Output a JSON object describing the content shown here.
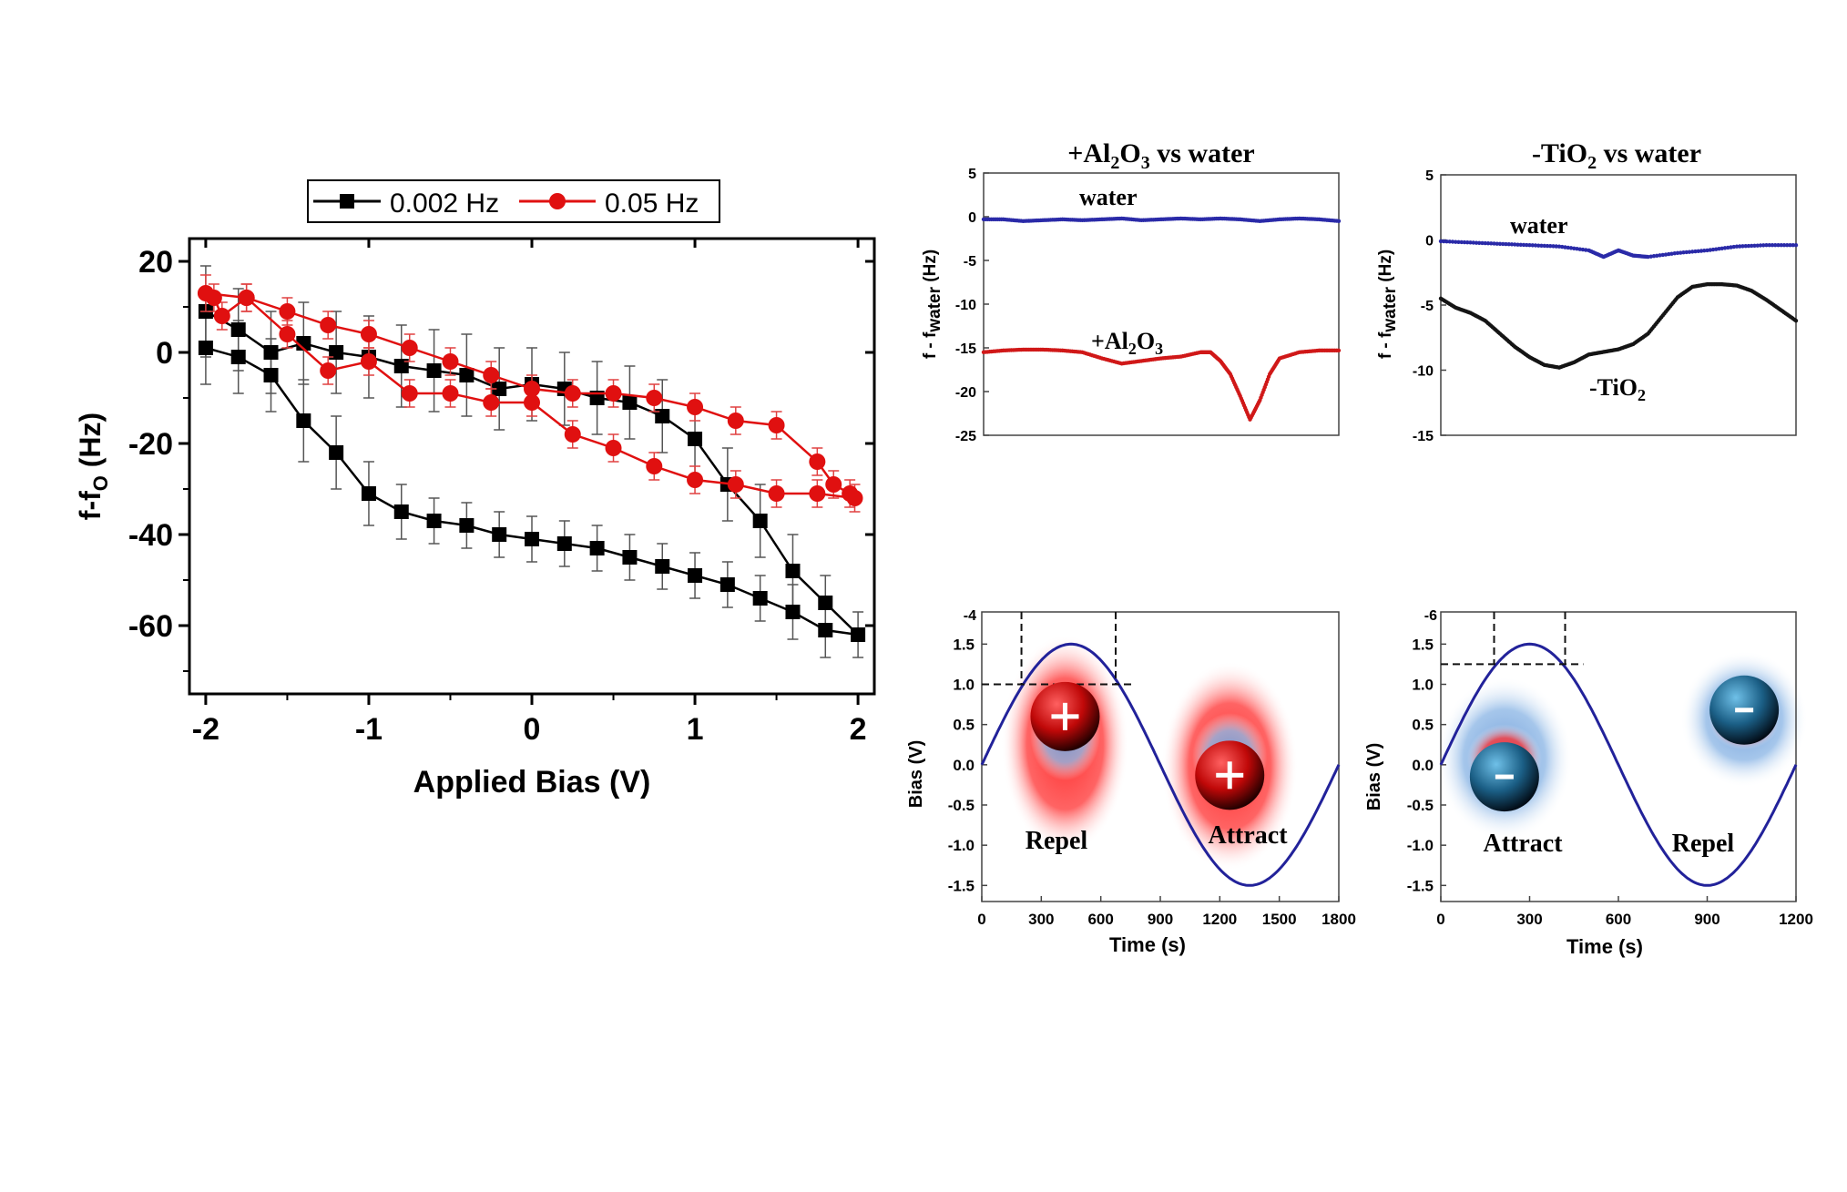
{
  "chart_data": [
    {
      "id": "hysteresis",
      "type": "line",
      "xlabel": "Applied Bias (V)",
      "ylabel": "f-f",
      "ylabel_sub": "O",
      "ylabel_unit": " (Hz)",
      "xlim": [
        -2.1,
        2.1
      ],
      "ylim": [
        -75,
        25
      ],
      "xticks": [
        "-2",
        "-1",
        "0",
        "1",
        "2"
      ],
      "xtick_values": [
        -2,
        -1,
        0,
        1,
        2
      ],
      "yticks": [
        "20",
        "0",
        "-20",
        "-40",
        "-60"
      ],
      "ytick_values": [
        20,
        0,
        -20,
        -40,
        -60
      ],
      "legend": "top-center",
      "series": [
        {
          "name": "0.002 Hz",
          "color": "#000000",
          "marker": "square",
          "x": [
            -2.0,
            -1.8,
            -1.6,
            -1.4,
            -1.2,
            -1.0,
            -0.8,
            -0.6,
            -0.4,
            -0.2,
            0.0,
            0.2,
            0.4,
            0.6,
            0.8,
            1.0,
            1.2,
            1.4,
            1.6,
            1.8,
            2.0,
            1.8,
            1.6,
            1.4,
            1.2,
            1.0,
            0.8,
            0.6,
            0.4,
            0.2,
            0.0,
            -0.2,
            -0.4,
            -0.6,
            -0.8,
            -1.0,
            -1.2,
            -1.4,
            -1.6,
            -1.8,
            -2.0
          ],
          "y": [
            1,
            -1,
            -5,
            -15,
            -22,
            -31,
            -35,
            -37,
            -38,
            -40,
            -41,
            -42,
            -43,
            -45,
            -47,
            -49,
            -51,
            -54,
            -57,
            -61,
            -62,
            -55,
            -48,
            -37,
            -29,
            -19,
            -14,
            -11,
            -10,
            -8,
            -7,
            -8,
            -5,
            -4,
            -3,
            -1,
            0,
            2,
            0,
            5,
            9
          ],
          "err": [
            8,
            8,
            8,
            9,
            8,
            7,
            6,
            5,
            5,
            5,
            5,
            5,
            5,
            5,
            5,
            5,
            5,
            5,
            6,
            6,
            5,
            6,
            8,
            8,
            8,
            8,
            8,
            8,
            8,
            8,
            8,
            9,
            9,
            9,
            9,
            9,
            9,
            9,
            9,
            9,
            10
          ]
        },
        {
          "name": "0.05 Hz",
          "color": "#e01010",
          "marker": "circle",
          "x": [
            -2.0,
            -1.75,
            -1.5,
            -1.25,
            -1.0,
            -0.75,
            -0.5,
            -0.25,
            0.0,
            0.25,
            0.5,
            0.75,
            1.0,
            1.25,
            1.5,
            1.75,
            1.85,
            1.95,
            1.98,
            1.75,
            1.5,
            1.25,
            1.0,
            0.75,
            0.5,
            0.25,
            0.0,
            -0.25,
            -0.5,
            -0.75,
            -1.0,
            -1.25,
            -1.5,
            -1.75,
            -1.9,
            -1.95
          ],
          "y": [
            13,
            12,
            9,
            6,
            4,
            1,
            -2,
            -5,
            -8,
            -9,
            -9,
            -10,
            -12,
            -15,
            -16,
            -24,
            -29,
            -31,
            -32,
            -31,
            -31,
            -29,
            -28,
            -25,
            -21,
            -18,
            -11,
            -11,
            -9,
            -9,
            -2,
            -4,
            4,
            12,
            8,
            12
          ],
          "err": [
            4,
            3,
            3,
            3,
            3,
            3,
            3,
            3,
            3,
            3,
            3,
            3,
            3,
            3,
            3,
            3,
            3,
            3,
            3,
            3,
            3,
            3,
            3,
            3,
            3,
            3,
            3,
            3,
            3,
            3,
            3,
            3,
            3,
            3,
            3,
            3
          ]
        }
      ]
    },
    {
      "id": "al2o3-vs-water",
      "type": "scatter",
      "title_parts": [
        "+Al",
        "2",
        "O",
        "3",
        " vs water"
      ],
      "ylabel": "f - f",
      "ylabel_sub": "water",
      "ylabel_unit": " (Hz)",
      "ylim": [
        -25,
        5
      ],
      "yticks": [
        "5",
        "0",
        "-5",
        "-10",
        "-15",
        "-20",
        "-25"
      ],
      "ytick_values": [
        5,
        0,
        -5,
        -10,
        -15,
        -20,
        -25
      ],
      "xlim": [
        0,
        1800
      ],
      "annotations": [
        {
          "text": "water"
        },
        {
          "text_parts": [
            "+Al",
            "2",
            "O",
            "3"
          ]
        }
      ],
      "series": [
        {
          "name": "water",
          "color": "#2a2aa8",
          "x": [
            0,
            100,
            200,
            300,
            400,
            500,
            600,
            700,
            800,
            900,
            1000,
            1100,
            1200,
            1300,
            1400,
            1500,
            1600,
            1700,
            1800
          ],
          "y": [
            -0.3,
            -0.3,
            -0.5,
            -0.4,
            -0.3,
            -0.4,
            -0.3,
            -0.2,
            -0.4,
            -0.3,
            -0.2,
            -0.3,
            -0.2,
            -0.3,
            -0.5,
            -0.3,
            -0.2,
            -0.3,
            -0.5
          ]
        },
        {
          "name": "+Al2O3",
          "color": "#d01818",
          "x": [
            0,
            100,
            200,
            300,
            400,
            500,
            600,
            700,
            800,
            900,
            1000,
            1100,
            1150,
            1200,
            1250,
            1300,
            1350,
            1400,
            1450,
            1500,
            1600,
            1700,
            1800
          ],
          "y": [
            -15.5,
            -15.3,
            -15.2,
            -15.2,
            -15.3,
            -15.5,
            -16.2,
            -16.8,
            -16.5,
            -16.2,
            -16,
            -15.5,
            -15.5,
            -16.5,
            -18,
            -20.5,
            -23.2,
            -21,
            -18,
            -16.2,
            -15.5,
            -15.3,
            -15.3
          ]
        }
      ]
    },
    {
      "id": "tio2-vs-water",
      "type": "scatter",
      "title_parts": [
        "-TiO",
        "2",
        " vs water"
      ],
      "ylabel": "f - f",
      "ylabel_sub": "water",
      "ylabel_unit": " (Hz)",
      "ylim": [
        -15,
        5
      ],
      "yticks": [
        "5",
        "0",
        "-5",
        "-10",
        "-15"
      ],
      "ytick_values": [
        5,
        0,
        -5,
        -10,
        -15
      ],
      "xlim": [
        0,
        1200
      ],
      "annotations": [
        {
          "text": "water"
        },
        {
          "text_parts": [
            "-TiO",
            "2"
          ]
        }
      ],
      "series": [
        {
          "name": "water",
          "color": "#2a2aa8",
          "x": [
            0,
            100,
            200,
            300,
            400,
            500,
            550,
            600,
            650,
            700,
            800,
            900,
            1000,
            1100,
            1200
          ],
          "y": [
            -0.1,
            -0.2,
            -0.3,
            -0.4,
            -0.5,
            -0.8,
            -1.3,
            -0.8,
            -1.2,
            -1.3,
            -1.0,
            -0.8,
            -0.5,
            -0.4,
            -0.4
          ]
        },
        {
          "name": "-TiO2",
          "color": "#151515",
          "x": [
            0,
            50,
            100,
            150,
            200,
            250,
            300,
            350,
            400,
            450,
            500,
            550,
            600,
            650,
            700,
            750,
            800,
            850,
            900,
            950,
            1000,
            1050,
            1100,
            1150,
            1200
          ],
          "y": [
            -4.5,
            -5.2,
            -5.6,
            -6.2,
            -7.2,
            -8.2,
            -9.0,
            -9.6,
            -9.8,
            -9.4,
            -8.8,
            -8.6,
            -8.4,
            -8.0,
            -7.2,
            -5.8,
            -4.4,
            -3.6,
            -3.4,
            -3.4,
            -3.5,
            -3.9,
            -4.6,
            -5.4,
            -6.2
          ]
        }
      ]
    },
    {
      "id": "al2o3-bias",
      "type": "line",
      "xlabel": "Time (s)",
      "ylabel": "Bias (V)",
      "xlim": [
        0,
        1800
      ],
      "ylim": [
        -1.7,
        1.9
      ],
      "xticks": [
        "0",
        "300",
        "600",
        "900",
        "1200",
        "1500",
        "1800"
      ],
      "xtick_values": [
        0,
        300,
        600,
        900,
        1200,
        1500,
        1800
      ],
      "yticks": [
        "1.5",
        "1.0",
        "0.5",
        "0.0",
        "-0.5",
        "-1.0",
        "-1.5"
      ],
      "ytick_values": [
        1.5,
        1.0,
        0.5,
        0.0,
        -0.5,
        -1.0,
        -1.5
      ],
      "top_label": "-4",
      "wave": {
        "amplitude": 1.5,
        "period": 1800,
        "color": "#22229a"
      },
      "threshold": {
        "y": 1.0,
        "x": [
          200,
          675
        ]
      },
      "labels": [
        "Repel",
        "Attract"
      ],
      "ion_symbol": "+",
      "ion_color": "#c81010",
      "cloud_outer": "#ff2020",
      "cloud_inner": "#7fa8dc"
    },
    {
      "id": "tio2-bias",
      "type": "line",
      "xlabel": "Time (s)",
      "ylabel": "Bias (V)",
      "xlim": [
        0,
        1200
      ],
      "ylim": [
        -1.7,
        1.9
      ],
      "xticks": [
        "0",
        "300",
        "600",
        "900",
        "1200"
      ],
      "xtick_values": [
        0,
        300,
        600,
        900,
        1200
      ],
      "yticks": [
        "1.5",
        "1.0",
        "0.5",
        "0.0",
        "-0.5",
        "-1.0",
        "-1.5"
      ],
      "ytick_values": [
        1.5,
        1.0,
        0.5,
        0.0,
        -0.5,
        -1.0,
        -1.5
      ],
      "top_label": "-6",
      "wave": {
        "amplitude": 1.5,
        "period": 1200,
        "color": "#22229a"
      },
      "threshold": {
        "y": 1.25,
        "x": [
          180,
          420
        ]
      },
      "labels": [
        "Attract",
        "Repel"
      ],
      "ion_symbol": "-",
      "ion_color": "#1d6a96",
      "cloud_outer": "#8fb8e6",
      "cloud_inner": "#ff2020"
    }
  ]
}
